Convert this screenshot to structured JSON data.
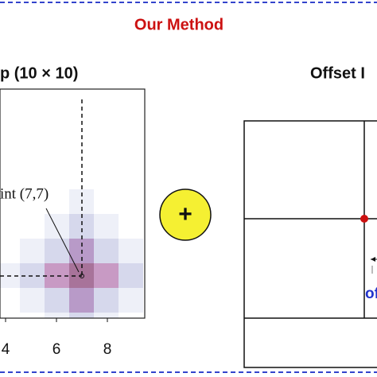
{
  "header": {
    "title": "Our Method"
  },
  "heatmap": {
    "title": "p (10 × 10)",
    "point_label": "int (7,7)",
    "x_ticks": [
      "4",
      "6",
      "8"
    ]
  },
  "operator": {
    "symbol": "+"
  },
  "offset": {
    "title": "Offset I",
    "note": "of"
  }
}
